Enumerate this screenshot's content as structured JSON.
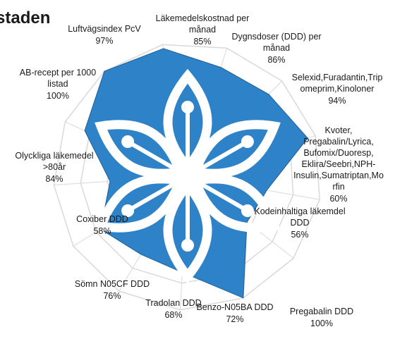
{
  "chart_data": {
    "type": "radar",
    "title": "staden",
    "categories": [
      {
        "label": "Läkemedelskostnad per\nmånad",
        "value_label": "85%"
      },
      {
        "label": "Dygnsdoser (DDD) per\nmånad",
        "value_label": "86%"
      },
      {
        "label": "Selexid,Furadantin,Trip\nomeprim,Kinoloner",
        "value_label": "94%"
      },
      {
        "label": "Kvoter,\nPregabalin/Lyrica,\nBufomix/Duoresp,\nEklira/Seebri,NPH-\nInsulin,Sumatriptan,Mo\nrfin",
        "value_label": "60%"
      },
      {
        "label": "Kodeinhaltiga läkemdel\nDDD",
        "value_label": "56%"
      },
      {
        "label": "Pregabalin DDD",
        "value_label": "100%"
      },
      {
        "label": "Benzo-N05BA  DDD",
        "value_label": "72%"
      },
      {
        "label": "Tradolan DDD",
        "value_label": "68%"
      },
      {
        "label": "Sömn  N05CF DDD",
        "value_label": "76%"
      },
      {
        "label": "Coxiber DDD",
        "value_label": "58%"
      },
      {
        "label": "Olyckliga läkemedel\n>80år",
        "value_label": "84%"
      },
      {
        "label": "AB-recept  per 1000\nlistad",
        "value_label": "100%"
      },
      {
        "label": "Luftvägsindex PcV",
        "value_label": "97%"
      }
    ],
    "values": [
      85,
      86,
      94,
      60,
      56,
      100,
      72,
      68,
      76,
      58,
      84,
      100,
      97
    ],
    "rlim": [
      0,
      100
    ],
    "fill_color": "#2e82c8",
    "grid_color": "#d9d9d9",
    "logo": "snowflake-flower-logo"
  }
}
